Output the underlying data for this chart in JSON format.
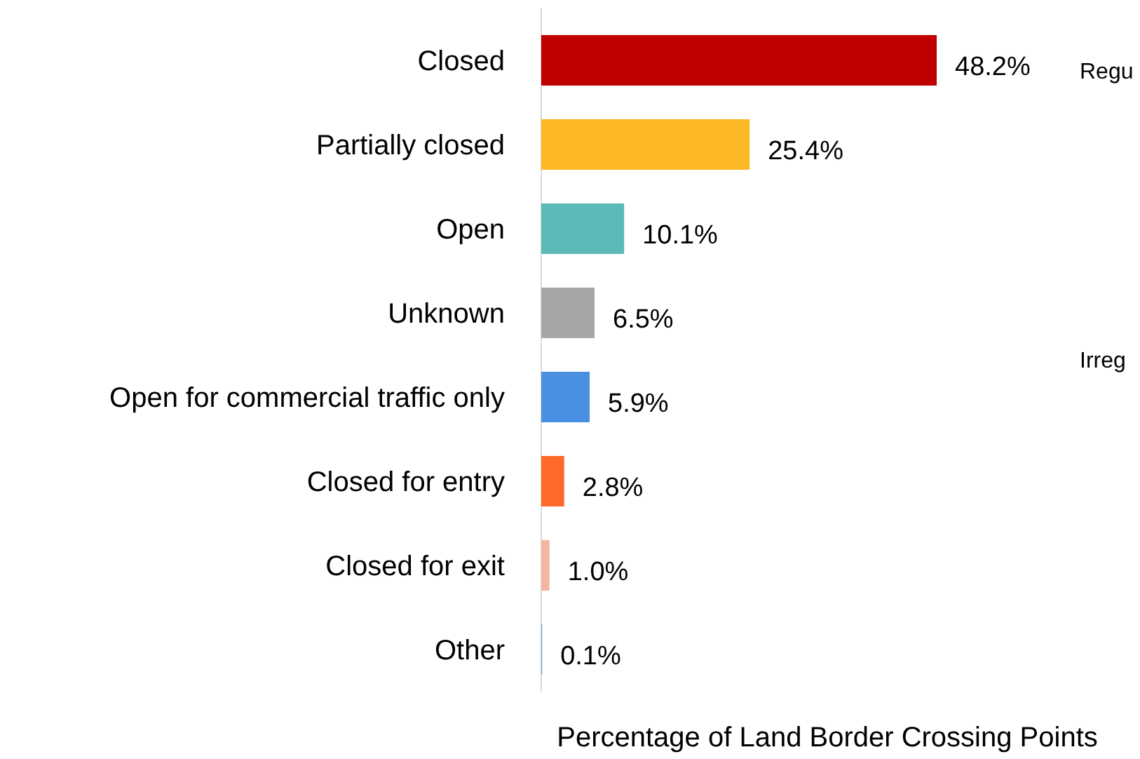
{
  "chart_data": {
    "type": "bar",
    "orientation": "horizontal",
    "categories": [
      "Closed",
      "Partially closed",
      "Open",
      "Unknown",
      "Open for commercial traffic only",
      "Closed for entry",
      "Closed for exit",
      "Other"
    ],
    "values": [
      48.2,
      25.4,
      10.1,
      6.5,
      5.9,
      2.8,
      1.0,
      0.1
    ],
    "value_labels": [
      "48.2%",
      "25.4%",
      "10.1%",
      "6.5%",
      "5.9%",
      "2.8%",
      "1.0%",
      "0.1%"
    ],
    "colors": [
      "#c00000",
      "#fdb827",
      "#5bbab5",
      "#a6a6a6",
      "#4a90e2",
      "#ff6a2b",
      "#f4b6a0",
      "#5b9bd5"
    ],
    "xlabel": "Percentage of Land Border Crossing Points",
    "annotations": [
      "Regu",
      "Irreg"
    ]
  }
}
